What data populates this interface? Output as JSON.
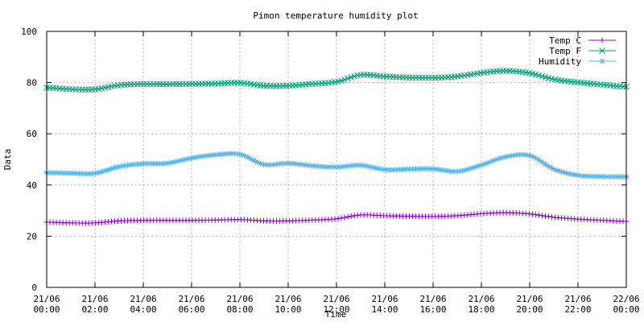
{
  "chart_data": {
    "type": "line",
    "title": "Pimon temperature   humidity plot",
    "xlabel": "Time",
    "ylabel": "Data",
    "ylim": [
      0,
      100
    ],
    "yticks": [
      0,
      20,
      40,
      60,
      80,
      100
    ],
    "xlim": [
      "21/06 00:00",
      "22/06 00:00"
    ],
    "xtick_labels": [
      [
        "21/06",
        "00:00"
      ],
      [
        "21/06",
        "02:00"
      ],
      [
        "21/06",
        "04:00"
      ],
      [
        "21/06",
        "06:00"
      ],
      [
        "21/06",
        "08:00"
      ],
      [
        "21/06",
        "10:00"
      ],
      [
        "21/06",
        "12:00"
      ],
      [
        "21/06",
        "14:00"
      ],
      [
        "21/06",
        "16:00"
      ],
      [
        "21/06",
        "18:00"
      ],
      [
        "21/06",
        "20:00"
      ],
      [
        "21/06",
        "22:00"
      ],
      [
        "22/06",
        "00:00"
      ]
    ],
    "grid": true,
    "legend_position": "top-right",
    "x": [
      "00:00",
      "01:00",
      "02:00",
      "03:00",
      "04:00",
      "05:00",
      "06:00",
      "07:00",
      "08:00",
      "09:00",
      "10:00",
      "11:00",
      "12:00",
      "13:00",
      "14:00",
      "15:00",
      "16:00",
      "17:00",
      "18:00",
      "19:00",
      "20:00",
      "21:00",
      "22:00",
      "23:00",
      "24:00"
    ],
    "series": [
      {
        "name": "Temp C",
        "color": "#9400d3",
        "marker": "plus",
        "values": [
          25.5,
          25.2,
          25.2,
          26,
          26.2,
          26.2,
          26.2,
          26.3,
          26.5,
          26,
          26,
          26.3,
          26.8,
          28.3,
          28,
          27.8,
          27.7,
          28,
          28.8,
          29.2,
          28.7,
          27.4,
          26.7,
          26.2,
          25.8
        ]
      },
      {
        "name": "Temp F",
        "color": "#009e73",
        "marker": "x",
        "values": [
          78,
          77.4,
          77.4,
          79,
          79.4,
          79.4,
          79.5,
          79.6,
          79.9,
          78.8,
          78.8,
          79.5,
          80.3,
          83,
          82.4,
          82,
          81.9,
          82.4,
          83.8,
          84.6,
          83.7,
          81.3,
          80.1,
          79.2,
          78.4
        ]
      },
      {
        "name": "Humidity",
        "color": "#56b4e9",
        "marker": "star",
        "values": [
          44.8,
          44.6,
          44.6,
          47.2,
          48.3,
          48.5,
          50.5,
          51.8,
          52,
          48,
          48.5,
          47.5,
          47,
          47.7,
          46,
          46.2,
          46.3,
          45.3,
          47.8,
          51,
          51.5,
          46.2,
          43.8,
          43.3,
          43.2
        ]
      }
    ]
  }
}
